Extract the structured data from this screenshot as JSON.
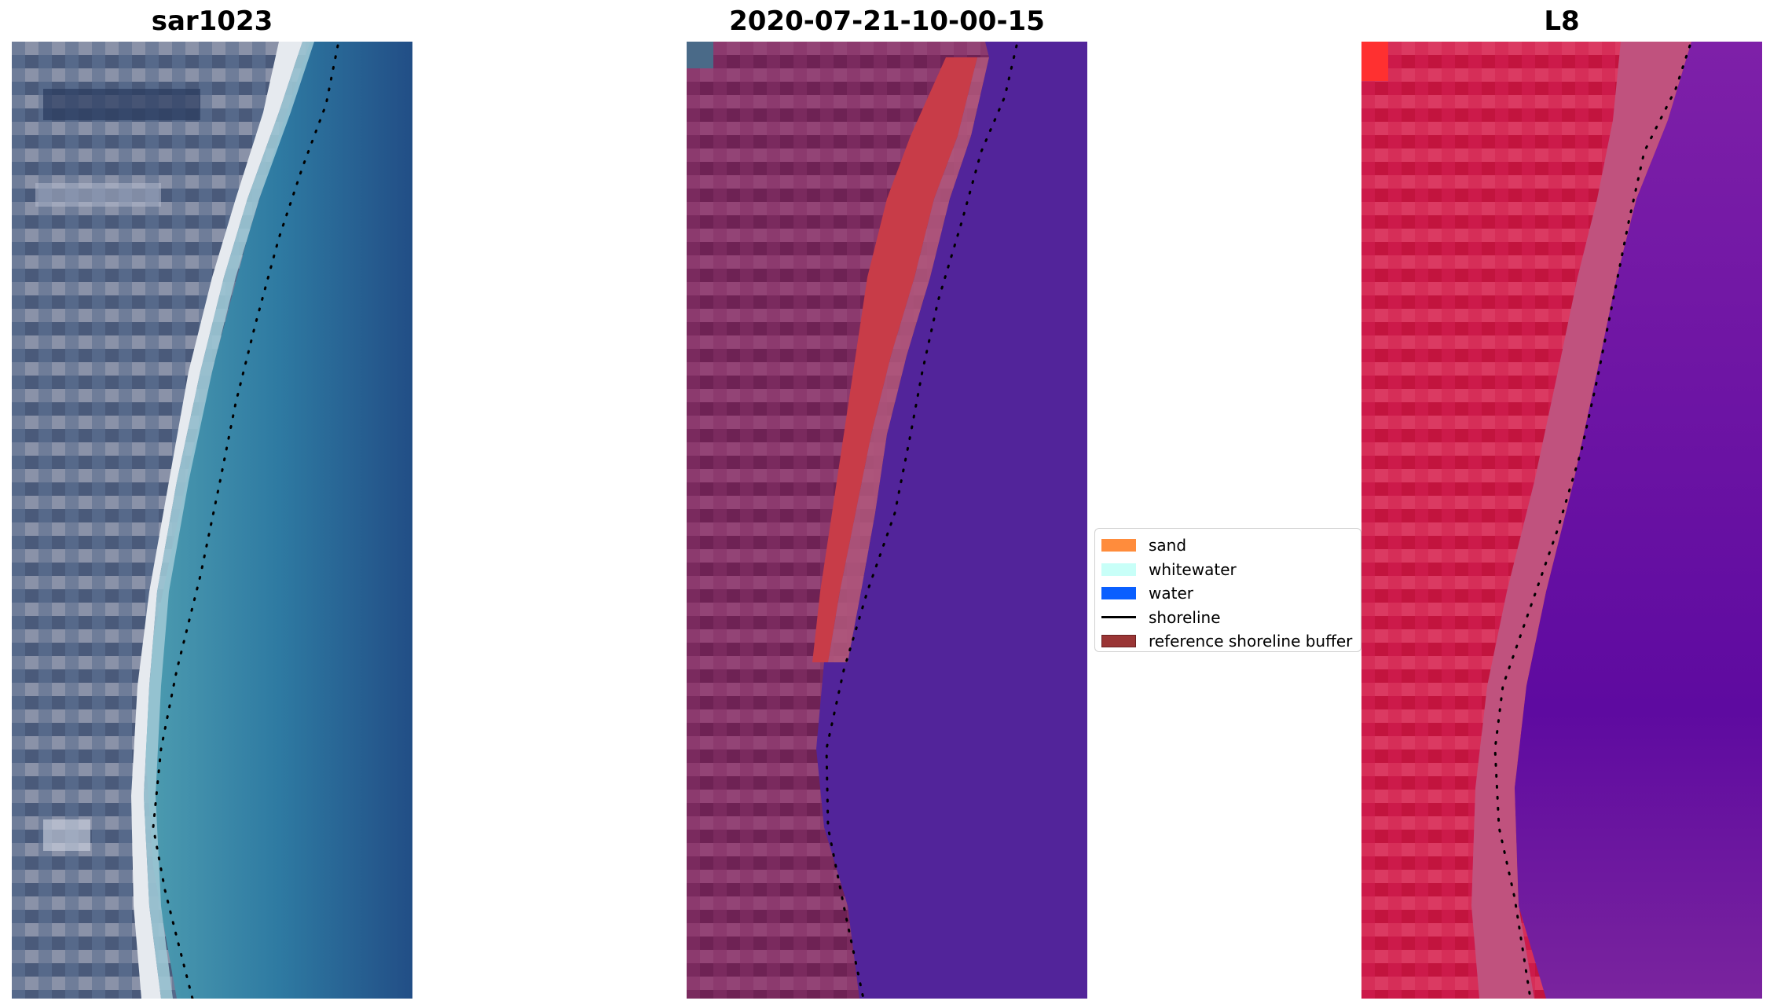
{
  "panels": [
    {
      "title": "sar1023",
      "image": "satellite-rgb-image"
    },
    {
      "title": "2020-07-21-10-00-15",
      "image": "classified-image"
    },
    {
      "title": "L8",
      "image": "false-color-image"
    }
  ],
  "legend": {
    "items": [
      {
        "label": "sand",
        "color": "#ff8c3c",
        "kind": "patch"
      },
      {
        "label": "whitewater",
        "color": "#c8fff8",
        "kind": "patch"
      },
      {
        "label": "water",
        "color": "#0a5fff",
        "kind": "patch"
      },
      {
        "label": "shoreline",
        "color": "#000000",
        "kind": "line"
      },
      {
        "label": "reference shoreline buffer",
        "color": "#9a3535",
        "kind": "patch"
      }
    ]
  },
  "colors": {
    "land_rgb": "#5a6a88",
    "beach_rgb": "#e8ecf0",
    "sea_rgb": "#2c6a94",
    "land_class": "#7a2a5c",
    "buffer_class": "#c83c48",
    "water_class": "#52249a",
    "land_l8": "#cc1a4a",
    "sea_l8": "#6a14a0"
  }
}
